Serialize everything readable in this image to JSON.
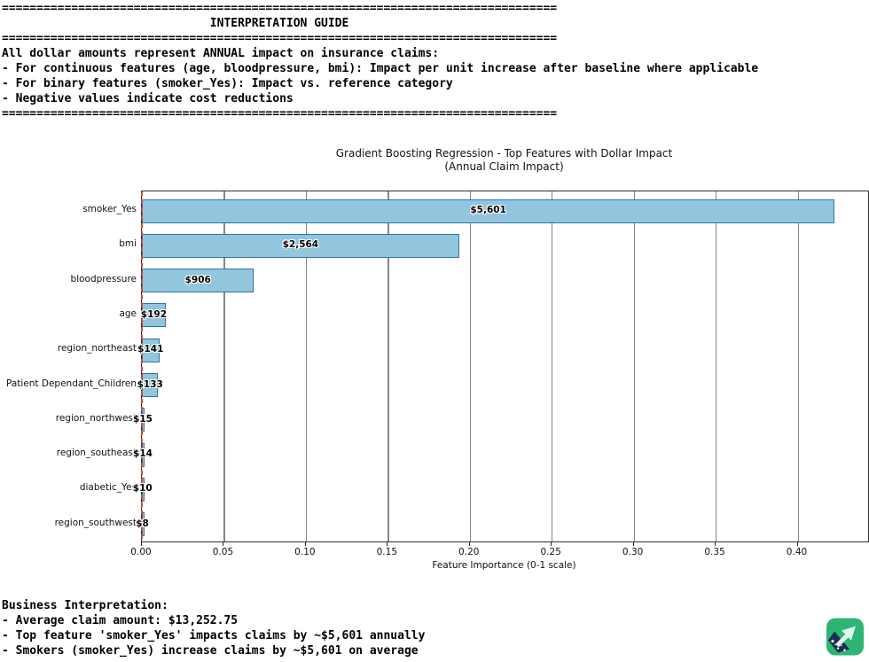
{
  "console_top": {
    "lines": [
      "================================================================================",
      "                              INTERPRETATION GUIDE",
      "================================================================================",
      "All dollar amounts represent ANNUAL impact on insurance claims:",
      "- For continuous features (age, bloodpressure, bmi): Impact per unit increase after baseline where applicable",
      "- For binary features (smoker_Yes): Impact vs. reference category",
      "- Negative values indicate cost reductions",
      "================================================================================"
    ]
  },
  "console_bottom": {
    "lines": [
      "Business Interpretation:",
      "- Average claim amount: $13,252.75",
      "- Top feature 'smoker_Yes' impacts claims by ~$5,601 annually",
      "- Smokers (smoker_Yes) increase claims by ~$5,601 on average"
    ]
  },
  "chart_data": {
    "type": "bar",
    "orientation": "horizontal",
    "title": "Gradient Boosting Regression - Top Features with Dollar Impact",
    "subtitle": "(Annual Claim Impact)",
    "xlabel": "Feature Importance (0-1 scale)",
    "categories": [
      "smoker_Yes",
      "bmi",
      "bloodpressure",
      "age",
      "region_northeast",
      "Patient Dependant_Children",
      "region_northwest",
      "region_southeast",
      "diabetic_Yes",
      "region_southwest"
    ],
    "values": [
      0.4226,
      0.1935,
      0.0684,
      0.0145,
      0.0106,
      0.01,
      0.0011,
      0.0011,
      0.0008,
      0.0006
    ],
    "bar_labels": [
      "$5,601",
      "$2,564",
      "$906",
      "$192",
      "$141",
      "$133",
      "$15",
      "$14",
      "$10",
      "$8"
    ],
    "xlim": [
      0,
      0.443
    ],
    "xticks": [
      0,
      0.05,
      0.1,
      0.15,
      0.2,
      0.25,
      0.3,
      0.35,
      0.4
    ],
    "xtick_labels": [
      "0.00",
      "0.05",
      "0.10",
      "0.15",
      "0.20",
      "0.25",
      "0.30",
      "0.35",
      "0.40"
    ],
    "grid": "vertical",
    "legend": null,
    "zero_line": {
      "x": 0,
      "style": "dashed"
    },
    "colors": {
      "bar_fill": "#92c5de",
      "bar_edge": "#2e76ab",
      "grid": "#868686",
      "spine": "#2f2f2f",
      "zero_line": "#d9442c"
    }
  },
  "watermark": {
    "icon_name": "arrow-up-right-icon",
    "bg_color": "#2eb573",
    "ribbon_color": "#1d2b53",
    "arrow_color": "#dffaec"
  }
}
